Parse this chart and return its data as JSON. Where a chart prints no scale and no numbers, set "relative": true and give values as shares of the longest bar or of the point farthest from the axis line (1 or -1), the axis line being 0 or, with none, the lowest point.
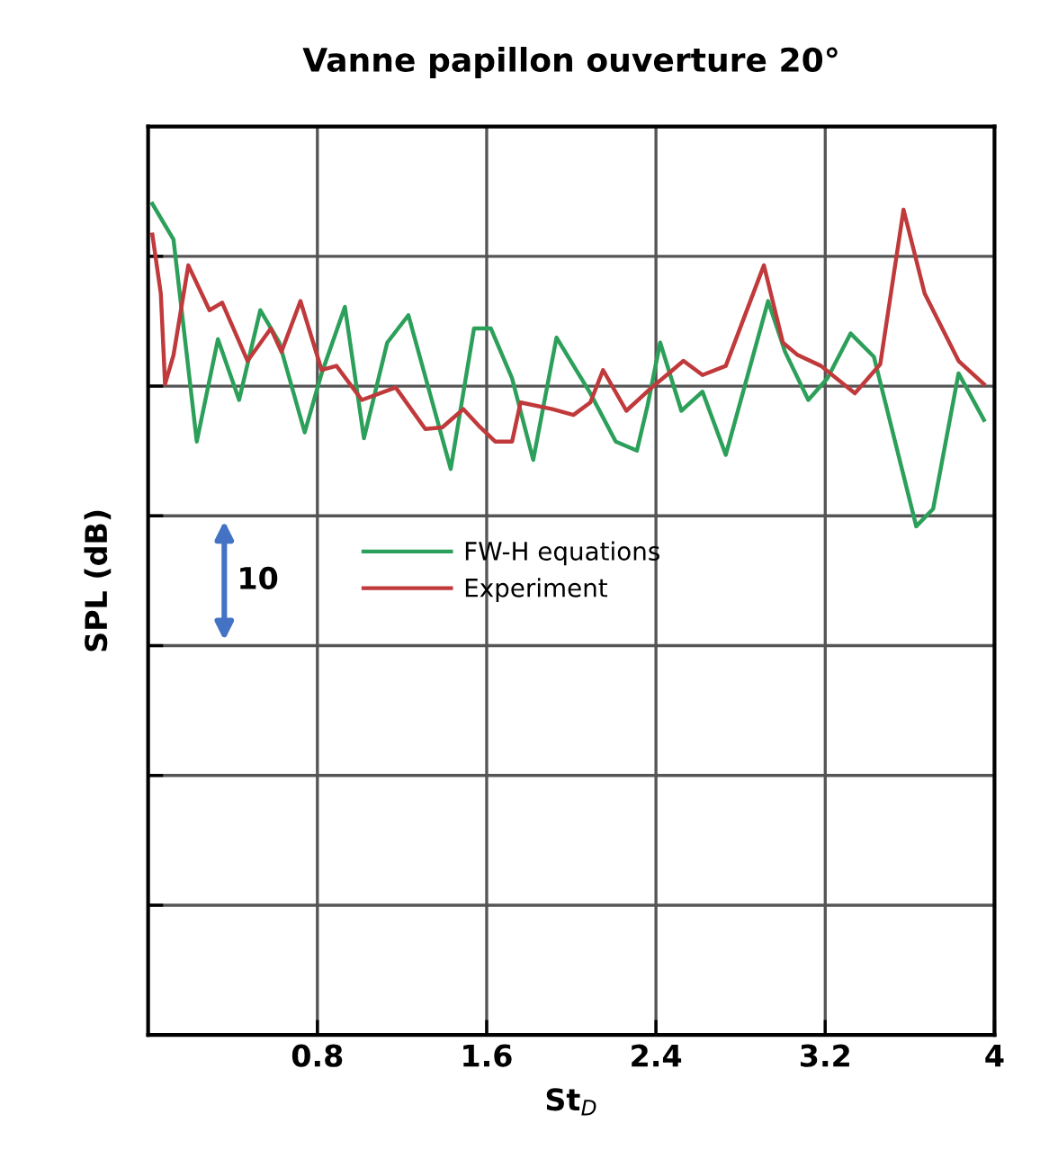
{
  "chart_data": {
    "type": "line",
    "title": "Vanne papillon ouverture 20°",
    "xlabel": "St$_{D}$",
    "ylabel": "SPL (dB)",
    "relative": true,
    "tick_labels": "x",
    "grid": true,
    "legend": "center",
    "line_style": "solid",
    "marker": "none",
    "xlim": [
      0,
      4
    ],
    "xticks": [
      0.8,
      1.6,
      2.4,
      3.2,
      4
    ],
    "annotations": [
      "10"
    ],
    "series": [
      {
        "name": "FW-H equations",
        "color": "#2ca05a",
        "x": [
          0.02,
          0.12,
          0.23,
          0.33,
          0.43,
          0.53,
          0.62,
          0.74,
          0.82,
          0.93,
          1.02,
          1.13,
          1.23,
          1.43,
          1.54,
          1.62,
          1.72,
          1.82,
          1.93,
          2.09,
          2.21,
          2.31,
          2.36,
          2.42,
          2.52,
          2.62,
          2.73,
          2.93,
          3.01,
          3.12,
          3.21,
          3.32,
          3.43,
          3.63,
          3.71,
          3.83,
          3.95
        ],
        "values": [
          1.0,
          0.957,
          0.714,
          0.837,
          0.764,
          0.872,
          0.833,
          0.725,
          0.796,
          0.876,
          0.718,
          0.833,
          0.866,
          0.681,
          0.85,
          0.85,
          0.79,
          0.692,
          0.839,
          0.772,
          0.714,
          0.703,
          0.757,
          0.833,
          0.751,
          0.774,
          0.698,
          0.883,
          0.822,
          0.764,
          0.79,
          0.844,
          0.816,
          0.612,
          0.633,
          0.796,
          0.74
        ]
      },
      {
        "name": "Experiment",
        "color": "#c0393b",
        "x": [
          0.02,
          0.06,
          0.08,
          0.12,
          0.19,
          0.29,
          0.35,
          0.47,
          0.58,
          0.63,
          0.72,
          0.82,
          0.89,
          1.01,
          1.17,
          1.31,
          1.39,
          1.49,
          1.57,
          1.64,
          1.72,
          1.76,
          1.91,
          2.01,
          2.09,
          2.15,
          2.26,
          2.38,
          2.46,
          2.53,
          2.62,
          2.73,
          2.91,
          3.0,
          3.07,
          3.18,
          3.34,
          3.46,
          3.57,
          3.67,
          3.83,
          3.95
        ],
        "values": [
          0.963,
          0.892,
          0.783,
          0.818,
          0.926,
          0.872,
          0.881,
          0.811,
          0.85,
          0.822,
          0.883,
          0.8,
          0.805,
          0.764,
          0.779,
          0.729,
          0.731,
          0.753,
          0.731,
          0.714,
          0.714,
          0.761,
          0.753,
          0.746,
          0.761,
          0.8,
          0.751,
          0.779,
          0.796,
          0.811,
          0.794,
          0.805,
          0.926,
          0.833,
          0.818,
          0.805,
          0.772,
          0.807,
          0.993,
          0.892,
          0.811,
          0.783
        ]
      }
    ]
  }
}
